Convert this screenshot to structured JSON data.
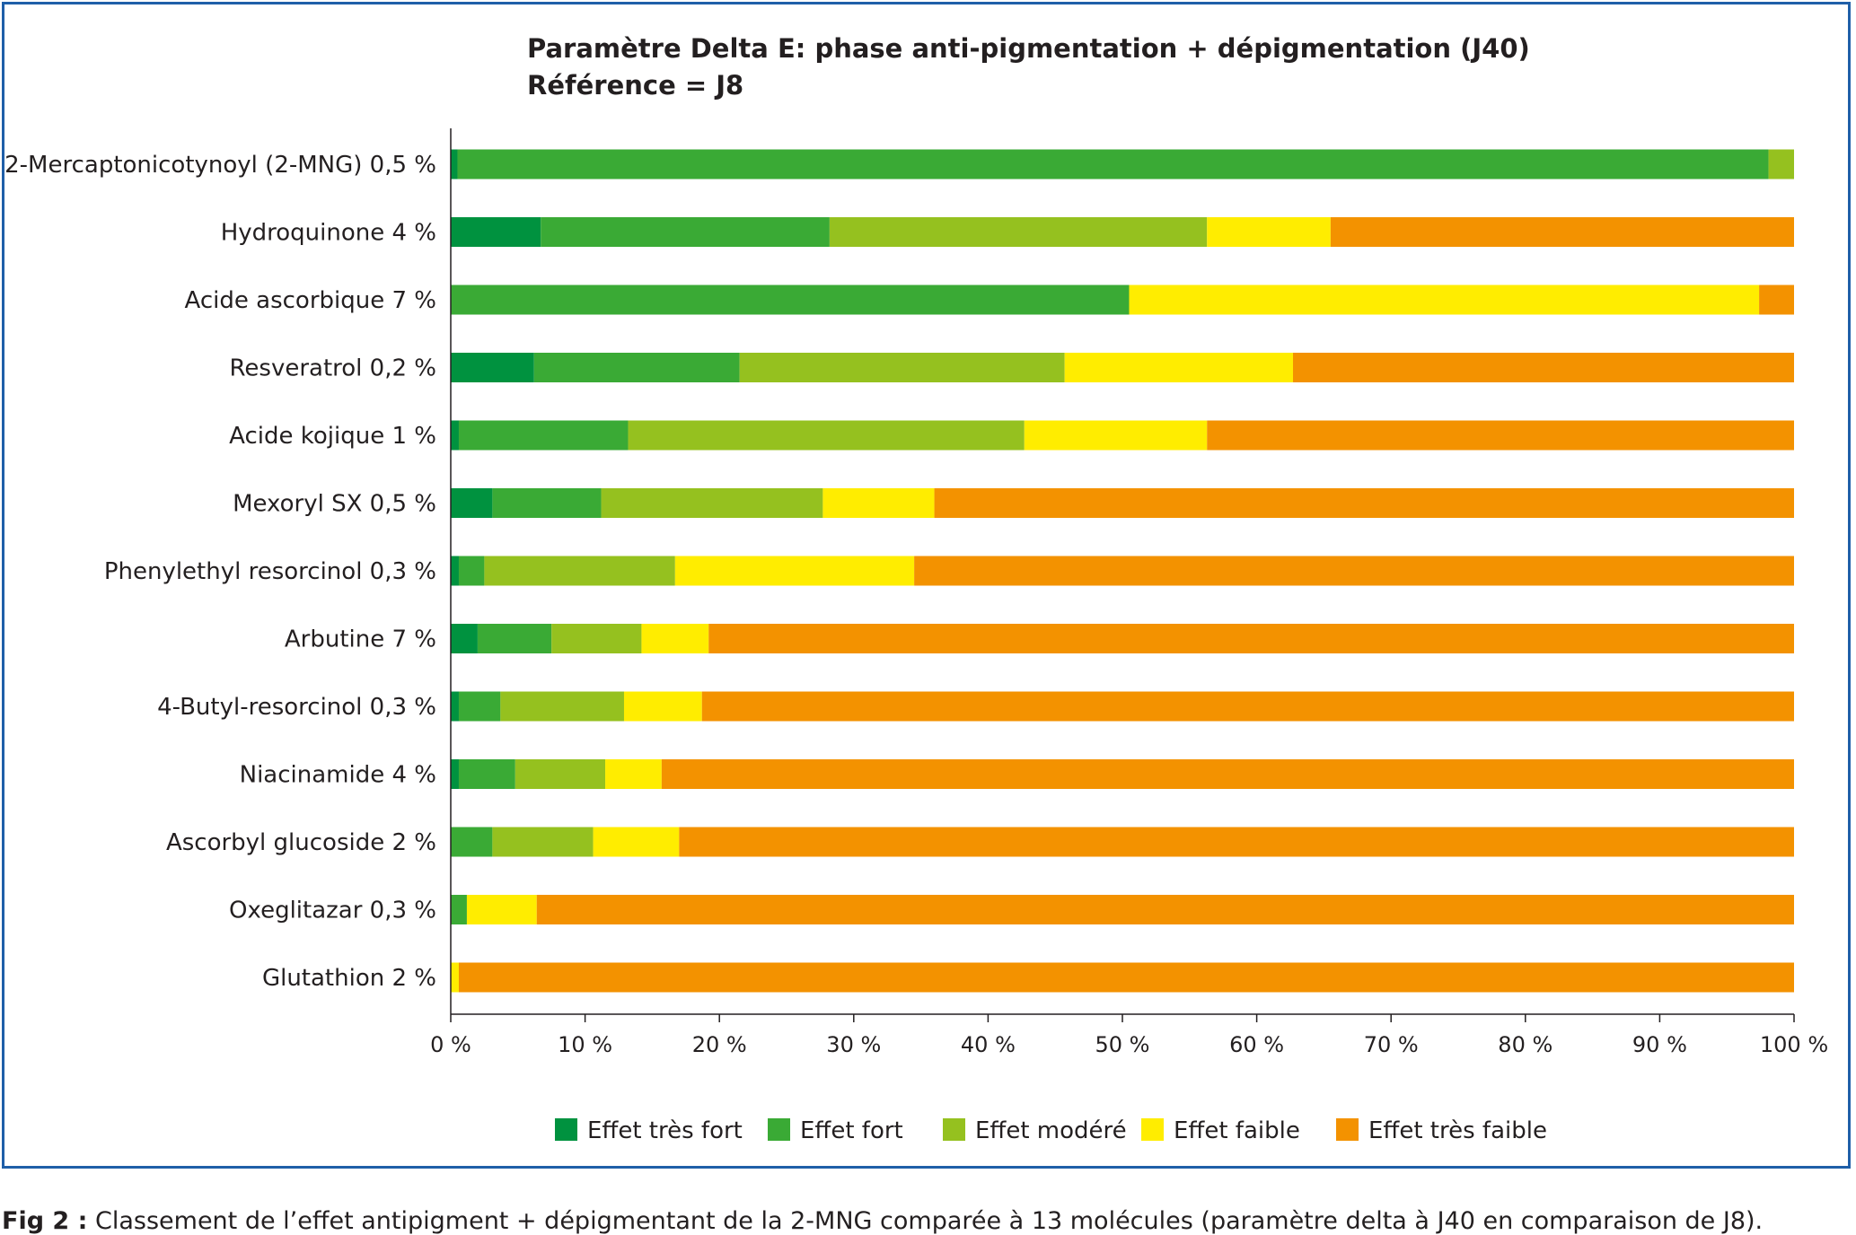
{
  "caption": {
    "label": "Fig 2 :",
    "text": " Classement de l’effet antipigment + dépigmentant de la 2-MNG comparée à 13 molécules (paramètre delta à J40 en comparaison de J8)."
  },
  "chart_data": {
    "type": "bar",
    "orientation": "horizontal",
    "stacked": true,
    "title": "Paramètre Delta E: phase anti-pigmentation + dépigmentation (J40)",
    "subtitle": "Référence = J8",
    "xlabel": "",
    "ylabel": "",
    "xlim": [
      0,
      100
    ],
    "x_ticks": [
      "0 %",
      "10 %",
      "20 %",
      "30 %",
      "40 %",
      "50 %",
      "60 %",
      "70 %",
      "80 %",
      "90 %",
      "100 %"
    ],
    "grid": false,
    "legend_position": "bottom",
    "categories": [
      "2-Mercaptonicotynoyl (2-MNG) 0,5 %",
      "Hydroquinone 4 %",
      "Acide ascorbique 7 %",
      "Resveratrol 0,2 %",
      "Acide kojique 1 %",
      "Mexoryl SX 0,5 %",
      "Phenylethyl resorcinol 0,3 %",
      "Arbutine 7 %",
      "4-Butyl-resorcinol 0,3 %",
      "Niacinamide 4 %",
      "Ascorbyl glucoside 2 %",
      "Oxeglitazar 0,3 %",
      "Glutathion 2 %"
    ],
    "series": [
      {
        "name": "Effet très fort",
        "color": "#00923f",
        "values": [
          0.5,
          6.7,
          0,
          6.2,
          0.6,
          3.1,
          0.6,
          2.0,
          0.6,
          0.6,
          0,
          0,
          0
        ]
      },
      {
        "name": "Effet fort",
        "color": "#3aaa35",
        "values": [
          97.6,
          21.5,
          50.5,
          15.3,
          12.6,
          8.1,
          1.9,
          5.5,
          3.1,
          4.2,
          3.1,
          1.2,
          0
        ]
      },
      {
        "name": "Effet modéré",
        "color": "#95c11f",
        "values": [
          1.9,
          28.1,
          0,
          24.2,
          29.5,
          16.5,
          14.2,
          6.7,
          9.2,
          6.7,
          7.5,
          0,
          0
        ]
      },
      {
        "name": "Effet faible",
        "color": "#ffed00",
        "values": [
          0,
          9.2,
          46.9,
          17.0,
          13.6,
          8.3,
          17.8,
          5.0,
          5.8,
          4.2,
          6.4,
          5.2,
          0.6
        ]
      },
      {
        "name": "Effet très faible",
        "color": "#f39200",
        "values": [
          0,
          34.5,
          2.6,
          37.3,
          43.7,
          64.0,
          65.5,
          80.8,
          81.3,
          84.3,
          83.0,
          93.6,
          99.4
        ]
      }
    ]
  }
}
